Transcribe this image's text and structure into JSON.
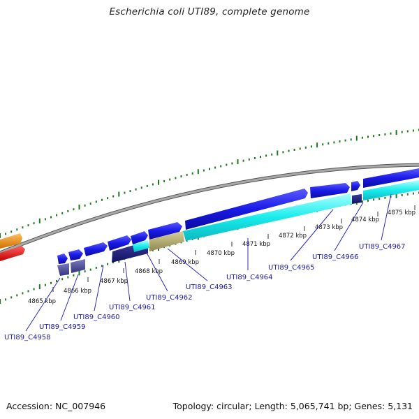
{
  "title": "Escherichia coli UTI89, complete genome",
  "footer": {
    "accession": "Accession: NC_007946",
    "summary": "Topology: circular; Length: 5,065,741 bp; Genes: 5,131"
  },
  "scale_labels": [
    "4865 kbp",
    "4866 kbp",
    "4867 kbp",
    "4868 kbp",
    "4869 kbp",
    "4870 kbp",
    "4871 kbp",
    "4872 kbp",
    "4873 kbp",
    "4874 kbp",
    "4875 kbp"
  ],
  "gene_labels": [
    "UTI89_C4958",
    "UTI89_C4959",
    "UTI89_C4960",
    "UTI89_C4961",
    "UTI89_C4962",
    "UTI89_C4963",
    "UTI89_C4964",
    "UTI89_C4965",
    "UTI89_C4966",
    "UTI89_C4967"
  ],
  "colors": {
    "cds_forward": "#1a1ae6",
    "cds_cyan": "#19ecec",
    "cds_navy": "#1a1a7a",
    "cds_slate": "#4a4a9a",
    "cds_olive": "#b4ac6e",
    "feature_orange": "#f0900c",
    "feature_red": "#ee0a0a",
    "backbone": "#8a8a8a",
    "gc_tick": "#1f7a1f",
    "label_blue": "#1a1aa8"
  }
}
